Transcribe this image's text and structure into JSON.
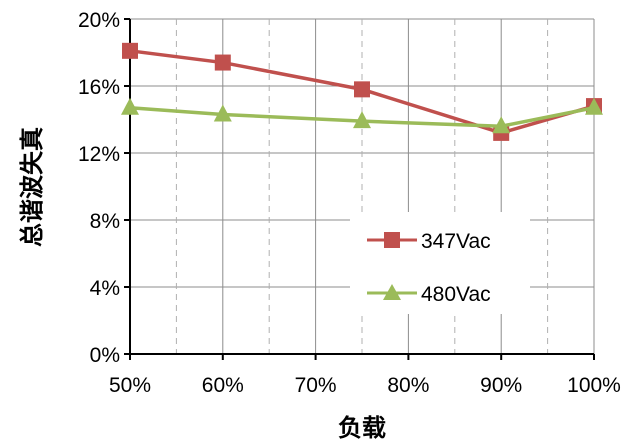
{
  "chart_data": {
    "type": "line",
    "categories": [
      "50%",
      "60%",
      "70%",
      "80%",
      "90%",
      "100%"
    ],
    "x": [
      50,
      60,
      75,
      90,
      100
    ],
    "xlim": [
      50,
      100
    ],
    "ylim": [
      0,
      20
    ],
    "yticks": [
      0,
      4,
      8,
      12,
      16,
      20
    ],
    "ytick_labels": [
      "0%",
      "4%",
      "8%",
      "12%",
      "16%",
      "20%"
    ],
    "xlabel": "负载",
    "ylabel": "总谐波失真",
    "grid": true,
    "legend_position": "bottom-right",
    "series": [
      {
        "name": "347Vac",
        "color": "#C0504D",
        "marker": "square",
        "values": [
          18.1,
          17.4,
          15.8,
          13.2,
          14.8
        ]
      },
      {
        "name": "480Vac",
        "color": "#9BBB59",
        "marker": "triangle",
        "values": [
          14.7,
          14.3,
          13.9,
          13.6,
          14.7
        ]
      }
    ]
  }
}
